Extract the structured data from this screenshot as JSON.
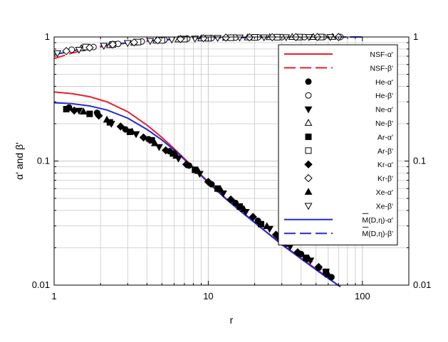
{
  "chart_data": {
    "type": "scatter",
    "title": "",
    "xlabel": "r",
    "ylabel": "α' and β'",
    "xscale": "log",
    "yscale": "log",
    "xlim": [
      1,
      200
    ],
    "ylim": [
      0.01,
      1
    ],
    "x_ticks": [
      1,
      10,
      100
    ],
    "x_tick_labels": [
      "1",
      "10",
      "100"
    ],
    "y_ticks": [
      0.01,
      0.1,
      1
    ],
    "y_tick_labels": [
      "0.01",
      "0.1",
      "1"
    ],
    "y2_tick_labels": [
      "0.01",
      "0.1",
      "1"
    ],
    "grid": true,
    "legend_position": "top-right",
    "lines": [
      {
        "legend": "NSF-α'",
        "color": "#e8202a",
        "dash": "solid",
        "x": [
          1,
          1.3,
          1.7,
          2.2,
          3,
          4,
          5,
          6,
          8,
          10,
          13,
          17,
          22,
          30,
          40,
          55,
          70
        ],
        "y": [
          0.36,
          0.35,
          0.33,
          0.3,
          0.25,
          0.195,
          0.155,
          0.126,
          0.089,
          0.068,
          0.05,
          0.038,
          0.029,
          0.0215,
          0.0165,
          0.0124,
          0.0099
        ]
      },
      {
        "legend": "NSF-β'",
        "color": "#e8202a",
        "dash": "dashed",
        "x": [
          1,
          1.3,
          1.7,
          2.2,
          3,
          4,
          5,
          7,
          10,
          15,
          20,
          30,
          50,
          100
        ],
        "y": [
          0.67,
          0.74,
          0.8,
          0.85,
          0.895,
          0.925,
          0.945,
          0.965,
          0.978,
          0.988,
          0.992,
          0.996,
          0.998,
          1.0
        ]
      },
      {
        "legend": "M(D,η)-α'",
        "color": "#1f2bd8",
        "dash": "solid",
        "x": [
          1,
          1.3,
          1.7,
          2.2,
          3,
          4,
          5,
          6,
          8,
          10,
          13,
          17,
          22,
          30,
          40,
          55,
          72
        ],
        "y": [
          0.295,
          0.29,
          0.278,
          0.258,
          0.222,
          0.18,
          0.148,
          0.123,
          0.088,
          0.067,
          0.0495,
          0.0375,
          0.029,
          0.0212,
          0.0163,
          0.0122,
          0.0097
        ]
      },
      {
        "legend": "M(D,η)-β'",
        "color": "#1f2bd8",
        "dash": "dashed",
        "x": [
          1,
          1.3,
          1.7,
          2.2,
          3,
          4,
          5,
          7,
          10,
          15,
          20,
          30,
          50,
          100
        ],
        "y": [
          0.72,
          0.77,
          0.82,
          0.86,
          0.9,
          0.93,
          0.948,
          0.967,
          0.979,
          0.988,
          0.992,
          0.996,
          0.998,
          1.0
        ]
      }
    ],
    "marker_series": [
      {
        "legend": "He-α'",
        "marker": "circle",
        "filled": true,
        "x": [
          1.25,
          1.9,
          2.9,
          4.1,
          5.6,
          7.5,
          10.5,
          15,
          21,
          29,
          40,
          52,
          63
        ],
        "y": [
          0.27,
          0.245,
          0.18,
          0.15,
          0.12,
          0.092,
          0.065,
          0.046,
          0.033,
          0.024,
          0.0178,
          0.0138,
          0.0116
        ]
      },
      {
        "legend": "He-β'",
        "marker": "circle",
        "filled": false,
        "x": [
          1.3,
          1.8,
          2.6,
          3.7,
          5.2,
          7.3,
          10.5,
          15,
          21,
          30,
          42,
          56,
          72
        ],
        "y": [
          0.79,
          0.83,
          0.88,
          0.92,
          0.95,
          0.97,
          0.98,
          0.99,
          0.995,
          0.997,
          0.998,
          0.999,
          1.0
        ]
      },
      {
        "legend": "Ne-α'",
        "marker": "triangle-down",
        "filled": true,
        "x": [
          1.45,
          2.35,
          3.4,
          4.8,
          6.4,
          8.8,
          12.5,
          17.5,
          25,
          34,
          46,
          58
        ],
        "y": [
          0.255,
          0.2,
          0.165,
          0.13,
          0.105,
          0.079,
          0.055,
          0.039,
          0.0285,
          0.0205,
          0.0158,
          0.0128
        ]
      },
      {
        "legend": "Ne-β'",
        "marker": "triangle-up",
        "filled": false,
        "x": [
          1.5,
          2.3,
          3.3,
          4.6,
          6.4,
          9,
          13,
          18,
          25,
          35,
          48,
          64
        ],
        "y": [
          0.81,
          0.86,
          0.9,
          0.935,
          0.955,
          0.973,
          0.985,
          0.99,
          0.995,
          0.998,
          0.999,
          1.0
        ]
      },
      {
        "legend": "Ar-α'",
        "marker": "square",
        "filled": true,
        "x": [
          1.2,
          1.7,
          2.3,
          3.1,
          4.3,
          5.9,
          8.2,
          11.5,
          16,
          22,
          31,
          43,
          58
        ],
        "y": [
          0.262,
          0.24,
          0.205,
          0.172,
          0.147,
          0.115,
          0.085,
          0.06,
          0.043,
          0.031,
          0.0225,
          0.0166,
          0.0128
        ]
      },
      {
        "legend": "Ar-β'",
        "marker": "square",
        "filled": false,
        "x": [
          1.6,
          2.4,
          3.5,
          5,
          7,
          10,
          14,
          20,
          28,
          39,
          54
        ],
        "y": [
          0.83,
          0.87,
          0.91,
          0.94,
          0.962,
          0.977,
          0.987,
          0.993,
          0.996,
          0.998,
          0.999
        ]
      },
      {
        "legend": "Kr-α'",
        "marker": "diamond",
        "filled": true,
        "x": [
          1.35,
          1.95,
          2.7,
          3.8,
          5.3,
          7.2,
          10,
          14,
          19.5,
          27.5,
          38,
          52
        ],
        "y": [
          0.255,
          0.232,
          0.19,
          0.155,
          0.122,
          0.094,
          0.068,
          0.049,
          0.0355,
          0.0255,
          0.0184,
          0.014
        ]
      },
      {
        "legend": "Kr-β'",
        "marker": "diamond",
        "filled": false,
        "x": [
          1.2,
          1.7,
          2.4,
          3.3,
          4.7,
          6.6,
          9.3,
          13,
          18.5,
          26,
          37,
          51,
          70
        ],
        "y": [
          0.77,
          0.82,
          0.87,
          0.905,
          0.94,
          0.963,
          0.978,
          0.988,
          0.993,
          0.996,
          0.998,
          0.999,
          1.0
        ]
      },
      {
        "legend": "Xe-α'",
        "marker": "triangle-up",
        "filled": true,
        "x": [
          1.55,
          2.2,
          3.2,
          4.5,
          6.2,
          8.6,
          12,
          17,
          24,
          33,
          45,
          60
        ],
        "y": [
          0.25,
          0.215,
          0.172,
          0.139,
          0.11,
          0.083,
          0.059,
          0.041,
          0.0298,
          0.0215,
          0.0162,
          0.0122
        ]
      },
      {
        "legend": "Xe-β'",
        "marker": "triangle-down",
        "filled": false,
        "x": [
          1.05,
          1.45,
          2.1,
          3,
          4.2,
          5.8,
          8.2,
          11.5,
          16,
          23,
          32,
          45,
          62
        ],
        "y": [
          0.74,
          0.79,
          0.85,
          0.895,
          0.93,
          0.955,
          0.972,
          0.984,
          0.991,
          0.995,
          0.997,
          0.999,
          1.0
        ]
      }
    ],
    "legend_order": [
      "NSF-α'",
      "NSF-β'",
      "He-α'",
      "He-β'",
      "Ne-α'",
      "Ne-β'",
      "Ar-α'",
      "Ar-β'",
      "Kr-α'",
      "Kr-β'",
      "Xe-α'",
      "Xe-β'",
      "M(D,η)-α'",
      "M(D,η)-β'"
    ]
  }
}
